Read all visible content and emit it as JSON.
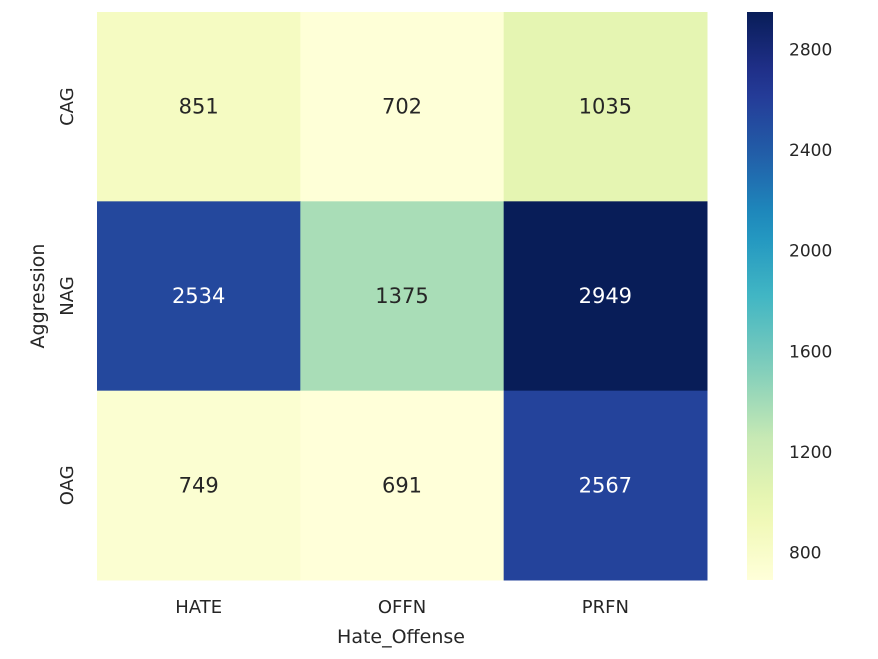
{
  "chart_data": {
    "type": "heatmap",
    "xlabel": "Hate_Offense",
    "ylabel": "Aggression",
    "x_categories": [
      "HATE",
      "OFFN",
      "PRFN"
    ],
    "y_categories": [
      "CAG",
      "NAG",
      "OAG"
    ],
    "values": [
      [
        851,
        702,
        1035
      ],
      [
        2534,
        1375,
        2949
      ],
      [
        749,
        691,
        2567
      ]
    ],
    "annotations": true,
    "colormap": "YlGnBu",
    "vmin": 691,
    "vmax": 2949,
    "colorbar": {
      "ticks": [
        800,
        1200,
        1600,
        2000,
        2400,
        2800
      ]
    }
  }
}
